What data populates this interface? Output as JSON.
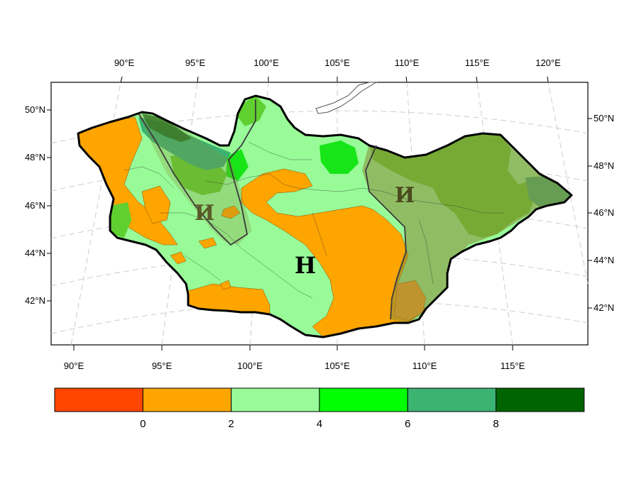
{
  "map": {
    "top_lon_ticks": [
      "90°E",
      "95°E",
      "100°E",
      "105°E",
      "110°E",
      "115°E",
      "120°E"
    ],
    "bottom_lon_ticks": [
      "90°E",
      "95°E",
      "100°E",
      "105°E",
      "110°E",
      "115°E"
    ],
    "left_lat_ticks": [
      "50°N",
      "48°N",
      "46°N",
      "44°N",
      "42°N"
    ],
    "right_lat_ticks": [
      "50°N",
      "48°N",
      "46°N",
      "44°N",
      "42°N"
    ],
    "zone_labels": {
      "west": "И",
      "center": "Н",
      "east": "И"
    },
    "region_colors": {
      "class_0_2": "#ffa500",
      "class_2_4": "#98fb98",
      "class_4_6": "#5fd030",
      "class_6_8": "#3cb371",
      "class_8_plus": "#1a6e1a",
      "zone_overlay": "#8a8a3a"
    }
  },
  "colorbar": {
    "colors": [
      "#ff4500",
      "#ffa500",
      "#98fb98",
      "#00ff00",
      "#3cb371",
      "#006400"
    ],
    "labels": [
      "0",
      "2",
      "4",
      "6",
      "8"
    ]
  }
}
